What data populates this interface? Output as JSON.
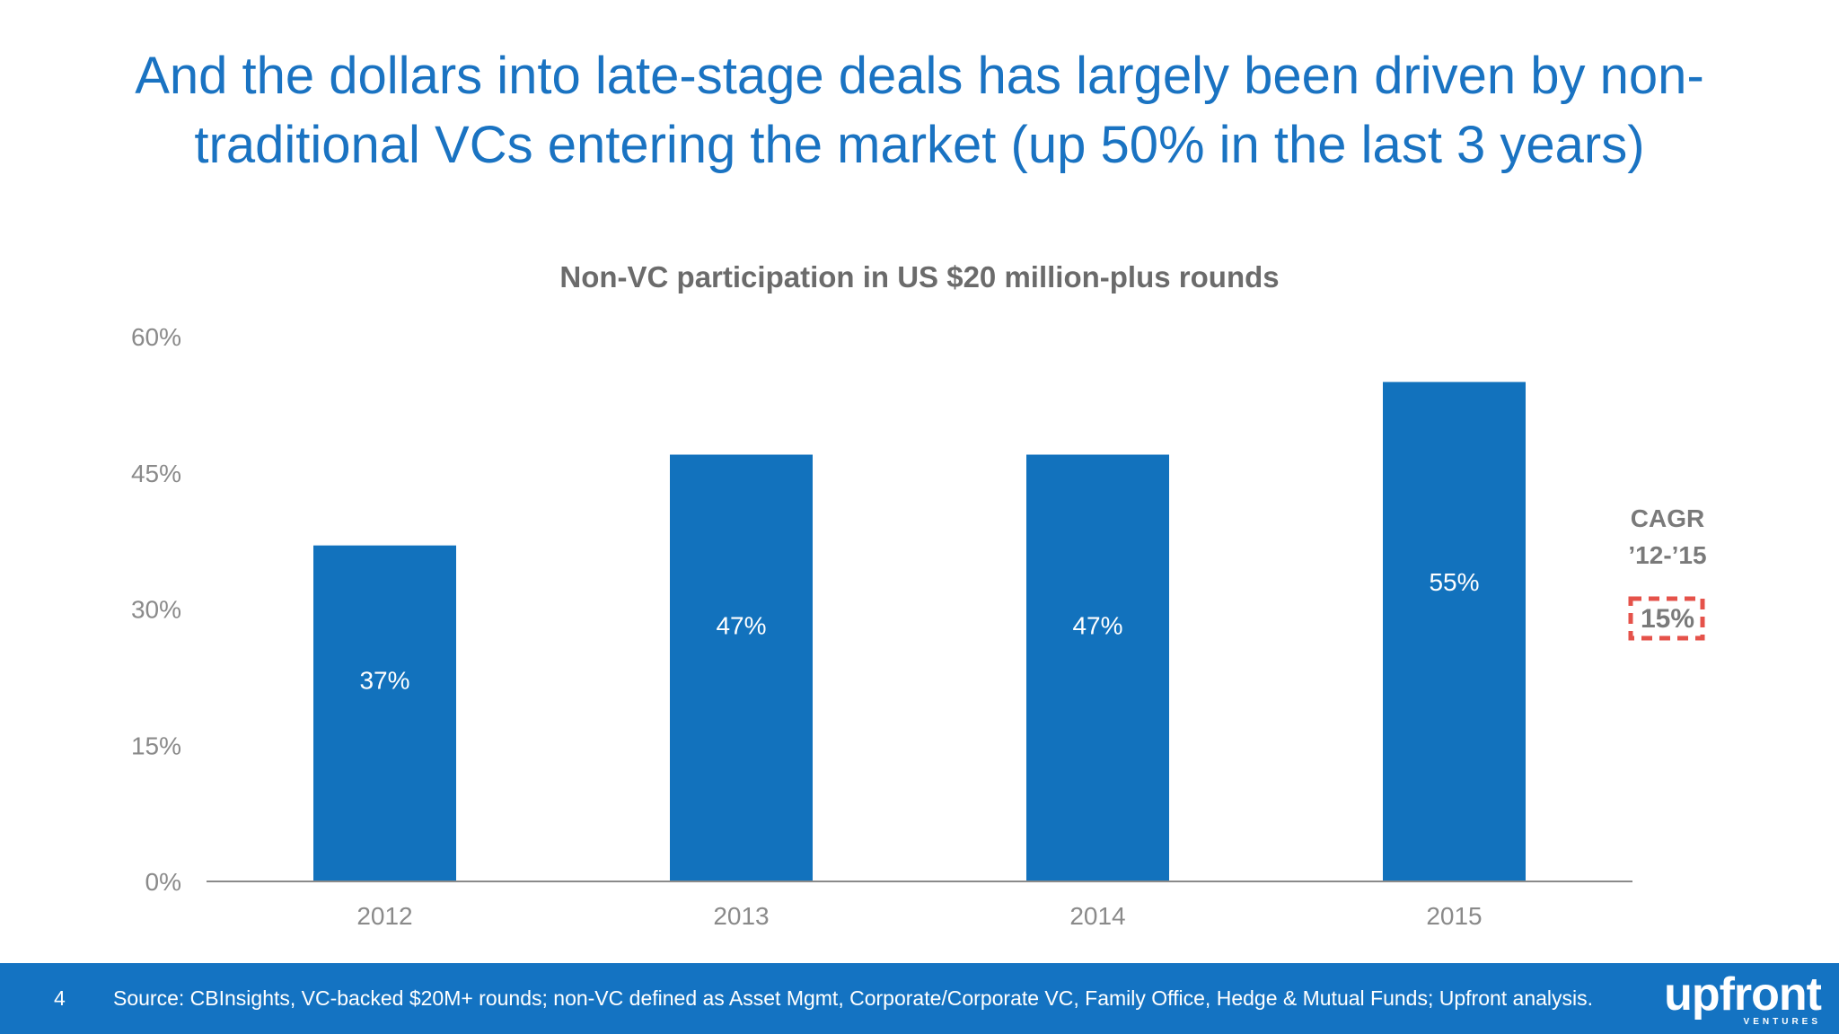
{
  "slide": {
    "title_line1": "And the dollars into late-stage deals has largely been driven by non-",
    "title_line2": "traditional VCs entering the market (up 50% in the last 3 years)",
    "page_number": "4",
    "source": "Source: CBInsights, VC-backed $20M+ rounds; non-VC defined as Asset Mgmt, Corporate/Corporate VC, Family Office, Hedge & Mutual Funds; Upfront analysis.",
    "logo_text": "upfront",
    "logo_subtext": "VENTURES"
  },
  "chart_data": {
    "type": "bar",
    "title": "Non-VC participation in US $20 million-plus rounds",
    "categories": [
      "2012",
      "2013",
      "2014",
      "2015"
    ],
    "values": [
      37,
      47,
      47,
      55
    ],
    "data_labels": [
      "37%",
      "47%",
      "47%",
      "55%"
    ],
    "yticks": [
      0,
      15,
      30,
      45,
      60
    ],
    "ytick_labels": [
      "0%",
      "15%",
      "30%",
      "45%",
      "60%"
    ],
    "ylim": [
      0,
      60
    ],
    "xlabel": "",
    "ylabel": "",
    "grid": false,
    "annotation": {
      "line1": "CAGR",
      "line2": "’12-’15",
      "value": "15%"
    }
  },
  "colors": {
    "title": "#1a73c2",
    "bar": "#1272bd",
    "footer": "#1473c2",
    "annotation_box": "#e5524a",
    "axis_text": "#8a8a8a"
  }
}
